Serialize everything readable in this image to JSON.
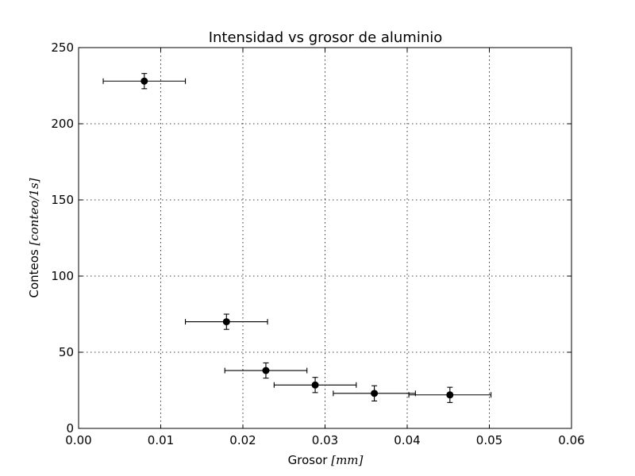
{
  "chart_data": {
    "type": "scatter",
    "title": "Intensidad vs grosor de aluminio",
    "xlabel": "Grosor",
    "xlabel_unit": "[mm]",
    "ylabel": "Conteos",
    "ylabel_unit": "[conteo/1s]",
    "xlim": [
      0,
      0.06
    ],
    "ylim": [
      0,
      250
    ],
    "x_ticks": [
      0,
      0.01,
      0.02,
      0.03,
      0.04,
      0.05,
      0.06
    ],
    "x_tick_labels": [
      "0.00",
      "0.01",
      "0.02",
      "0.03",
      "0.04",
      "0.05",
      "0.06"
    ],
    "y_ticks": [
      0,
      50,
      100,
      150,
      200,
      250
    ],
    "y_tick_labels": [
      "0",
      "50",
      "100",
      "150",
      "200",
      "250"
    ],
    "grid": true,
    "points": [
      {
        "x": 0.008,
        "y": 228,
        "xerr": 0.005,
        "yerr": 5
      },
      {
        "x": 0.018,
        "y": 70,
        "xerr": 0.005,
        "yerr": 5
      },
      {
        "x": 0.0228,
        "y": 38,
        "xerr": 0.005,
        "yerr": 5
      },
      {
        "x": 0.0288,
        "y": 28.5,
        "xerr": 0.005,
        "yerr": 5
      },
      {
        "x": 0.036,
        "y": 23,
        "xerr": 0.005,
        "yerr": 5
      },
      {
        "x": 0.0452,
        "y": 22,
        "xerr": 0.005,
        "yerr": 5
      }
    ],
    "marker_color": "#000000"
  }
}
